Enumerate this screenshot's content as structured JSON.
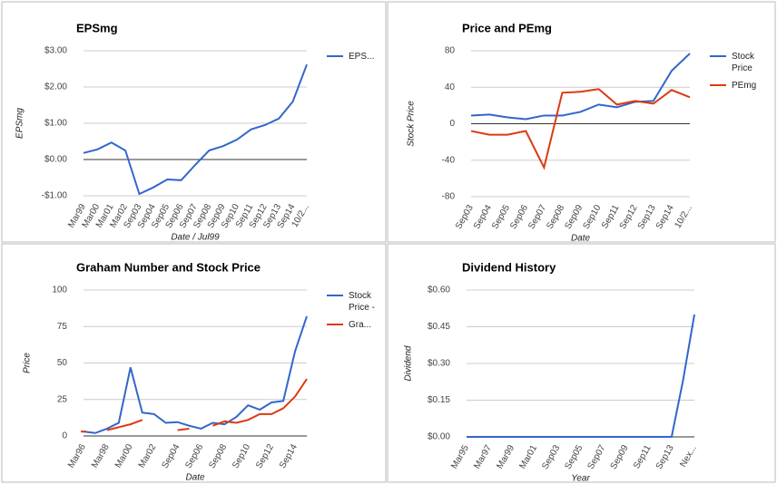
{
  "chart_data": [
    {
      "type": "line",
      "title": "EPSmg",
      "y_label": "EPSmg",
      "x_label": "Date / Jul99",
      "categories": [
        "Mar99",
        "Mar00",
        "Mar01",
        "Mar02",
        "Sep03",
        "Sep04",
        "Sep05",
        "Sep06",
        "Sep07",
        "Sep08",
        "Sep09",
        "Sep10",
        "Sep11",
        "Sep12",
        "Sep13",
        "Sep14",
        "10/2..."
      ],
      "series": [
        {
          "name": "EPS...",
          "color": "#3366cc",
          "values": [
            0.18,
            0.28,
            0.47,
            0.25,
            -0.95,
            -0.77,
            -0.55,
            -0.57,
            -0.15,
            0.25,
            0.37,
            0.55,
            0.83,
            0.95,
            1.13,
            1.6,
            2.62
          ]
        }
      ],
      "ylim": [
        -1,
        3
      ],
      "yticks": [
        {
          "value": 3,
          "label": "$3.00"
        },
        {
          "value": 2,
          "label": "$2.00"
        },
        {
          "value": 1,
          "label": "$1.00"
        },
        {
          "value": 0,
          "label": "$0.00"
        },
        {
          "value": -1,
          "label": "-$1.00"
        }
      ],
      "grid": true,
      "legend": "right"
    },
    {
      "type": "line",
      "title": "Price and PEmg",
      "y_label": "Stock Price",
      "x_label": "Date",
      "categories": [
        "Sep03",
        "Sep04",
        "Sep05",
        "Sep06",
        "Sep07",
        "Sep08",
        "Sep09",
        "Sep10",
        "Sep11",
        "Sep12",
        "Sep13",
        "Sep14",
        "10/2..."
      ],
      "series": [
        {
          "name": "Stock Price",
          "color": "#3366cc",
          "values": [
            9,
            10,
            7,
            5,
            9,
            9,
            13,
            21,
            18,
            24,
            25,
            58,
            77
          ]
        },
        {
          "name": "PEmg",
          "color": "#dc3912",
          "values": [
            -8,
            -12,
            -12,
            -8,
            -48,
            34,
            35,
            38,
            21,
            25,
            22,
            37,
            29
          ]
        }
      ],
      "ylim": [
        -80,
        80
      ],
      "yticks": [
        80,
        40,
        0,
        -40,
        -80
      ],
      "grid": true,
      "legend": "right"
    },
    {
      "type": "line",
      "title": "Graham Number and Stock Price",
      "y_label": "Price",
      "x_label": "Date",
      "categories": [
        "Mar96",
        null,
        "Mar98",
        null,
        "Mar00",
        null,
        "Mar02",
        null,
        "Sep04",
        null,
        "Sep06",
        null,
        "Sep08",
        null,
        "Sep10",
        null,
        "Sep12",
        null,
        "Sep14",
        null
      ],
      "series": [
        {
          "name": "Stock Price -",
          "color": "#3366cc",
          "values": [
            3,
            2,
            5,
            9,
            47,
            16,
            15,
            9,
            9.5,
            7,
            5,
            9,
            8,
            13,
            21,
            18,
            23,
            24,
            58,
            82
          ]
        },
        {
          "name": "Gra...",
          "color": "#dc3912",
          "values": [
            3,
            null,
            4,
            6,
            8,
            11,
            null,
            null,
            4,
            5,
            null,
            7,
            10,
            9,
            11,
            15,
            15,
            19,
            27,
            39
          ]
        }
      ],
      "ylim": [
        0,
        100
      ],
      "yticks": [
        100,
        75,
        50,
        25,
        0
      ],
      "grid": true,
      "legend": "right"
    },
    {
      "type": "line",
      "title": "Dividend History",
      "y_label": "Dividend",
      "x_label": "Year",
      "categories": [
        "Mar95",
        null,
        "Mar97",
        null,
        "Mar99",
        null,
        "Mar01",
        null,
        "Sep03",
        null,
        "Sep05",
        null,
        "Sep07",
        null,
        "Sep09",
        null,
        "Sep11",
        null,
        "Sep13",
        null,
        "Nex..."
      ],
      "series": [
        {
          "name": "Dividend",
          "color": "#3366cc",
          "values": [
            0,
            0,
            0,
            0,
            0,
            0,
            0,
            0,
            0,
            0,
            0,
            0,
            0,
            0,
            0,
            0,
            0,
            0,
            0,
            0.23,
            0.5
          ]
        }
      ],
      "ylim": [
        0,
        0.6
      ],
      "yticks": [
        {
          "value": 0.6,
          "label": "$0.60"
        },
        {
          "value": 0.45,
          "label": "$0.45"
        },
        {
          "value": 0.3,
          "label": "$0.30"
        },
        {
          "value": 0.15,
          "label": "$0.15"
        },
        {
          "value": 0,
          "label": "$0.00"
        }
      ],
      "grid": true,
      "legend": "none"
    }
  ]
}
